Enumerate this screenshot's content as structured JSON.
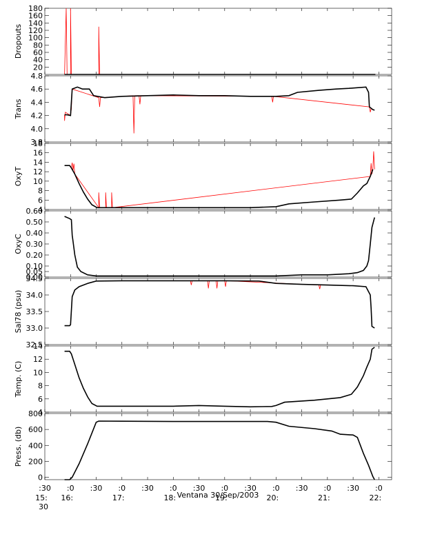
{
  "chart_data": {
    "type": "line",
    "time_axis": {
      "start": "15:30",
      "end": "22:15",
      "tick_labels": [
        {
          "t": "15:30",
          "top": ":30",
          "bottom": "15:"
        },
        {
          "t": "16:00",
          "top": ":0",
          "bottom": "16:"
        },
        {
          "t": "16:30",
          "top": ":30",
          "bottom": ""
        },
        {
          "t": "17:00",
          "top": ":0",
          "bottom": "17:"
        },
        {
          "t": "17:30",
          "top": ":30",
          "bottom": ""
        },
        {
          "t": "18:00",
          "top": ":0",
          "bottom": "18:"
        },
        {
          "t": "18:30",
          "top": ":30",
          "bottom": ""
        },
        {
          "t": "19:00",
          "top": ":0",
          "bottom": "19:"
        },
        {
          "t": "19:30",
          "top": ":30",
          "bottom": ""
        },
        {
          "t": "20:00",
          "top": ":0",
          "bottom": "20:"
        },
        {
          "t": "20:30",
          "top": ":30",
          "bottom": ""
        },
        {
          "t": "21:00",
          "top": ":0",
          "bottom": "21:"
        },
        {
          "t": "21:30",
          "top": ":30",
          "bottom": ""
        },
        {
          "t": "22:00",
          "top": ":0",
          "bottom": "22:"
        }
      ],
      "extra_label": "30",
      "caption": "Ventana 30/Sep/2003"
    },
    "colors": {
      "main": "#000000",
      "raw": "#ff0000"
    },
    "panels": [
      {
        "id": "dropouts",
        "ylabel": "Dropouts",
        "ylim": [
          0,
          180
        ],
        "yticks": [
          {
            "v": 20,
            "label": "20"
          },
          {
            "v": 40,
            "label": "40"
          },
          {
            "v": 60,
            "label": "60"
          },
          {
            "v": 80,
            "label": "80"
          },
          {
            "v": 100,
            "label": "100"
          },
          {
            "v": 120,
            "label": "120"
          },
          {
            "v": 140,
            "label": "140"
          },
          {
            "v": 160,
            "label": "160"
          },
          {
            "v": 180,
            "label": "180"
          }
        ],
        "line": [
          [
            "15:53",
            0
          ],
          [
            "21:56",
            0
          ]
        ],
        "red_line": [
          [
            "15:53",
            0
          ],
          [
            "15:55",
            180
          ],
          [
            "15:56",
            0
          ],
          [
            "16:00",
            0
          ],
          [
            "16:00",
            180
          ],
          [
            "16:01",
            0
          ],
          [
            "16:33",
            0
          ],
          [
            "16:33",
            130
          ],
          [
            "16:34",
            0
          ],
          [
            "21:56",
            0
          ]
        ]
      },
      {
        "id": "trans",
        "ylabel": "Trans",
        "ylim": [
          3.8,
          4.8
        ],
        "yticks": [
          {
            "v": 3.8,
            "label": "3.8"
          },
          {
            "v": 4.0,
            "label": "4.0"
          },
          {
            "v": 4.2,
            "label": "4.2"
          },
          {
            "v": 4.4,
            "label": "4.4"
          },
          {
            "v": 4.6,
            "label": "4.6"
          },
          {
            "v": 4.8,
            "label": "4.8"
          }
        ],
        "line": [
          [
            "15:53",
            4.21
          ],
          [
            "15:56",
            4.21
          ],
          [
            "16:00",
            4.2
          ],
          [
            "16:02",
            4.6
          ],
          [
            "16:08",
            4.63
          ],
          [
            "16:14",
            4.6
          ],
          [
            "16:22",
            4.6
          ],
          [
            "16:27",
            4.5
          ],
          [
            "16:40",
            4.47
          ],
          [
            "17:00",
            4.49
          ],
          [
            "17:30",
            4.5
          ],
          [
            "18:00",
            4.51
          ],
          [
            "18:30",
            4.5
          ],
          [
            "19:00",
            4.5
          ],
          [
            "19:30",
            4.49
          ],
          [
            "20:00",
            4.49
          ],
          [
            "20:15",
            4.5
          ],
          [
            "20:25",
            4.55
          ],
          [
            "20:50",
            4.58
          ],
          [
            "21:10",
            4.6
          ],
          [
            "21:25",
            4.61
          ],
          [
            "21:45",
            4.63
          ],
          [
            "21:48",
            4.55
          ],
          [
            "21:49",
            4.33
          ],
          [
            "21:53",
            4.29
          ],
          [
            "21:55",
            4.28
          ]
        ],
        "red_line": [
          [
            "15:53",
            4.21
          ],
          [
            "15:53",
            4.12
          ],
          [
            "15:54",
            4.25
          ],
          [
            "16:00",
            4.2
          ],
          [
            "16:01",
            4.3
          ],
          [
            "16:02",
            4.6
          ],
          [
            "16:33",
            4.47
          ],
          [
            "16:34",
            4.33
          ],
          [
            "16:35",
            4.47
          ],
          [
            "17:13",
            4.5
          ],
          [
            "17:14",
            3.93
          ],
          [
            "17:15",
            4.5
          ],
          [
            "17:20",
            4.5
          ],
          [
            "17:21",
            4.37
          ],
          [
            "17:22",
            4.5
          ],
          [
            "19:55",
            4.49
          ],
          [
            "19:56",
            4.4
          ],
          [
            "19:57",
            4.49
          ],
          [
            "21:49",
            4.33
          ],
          [
            "21:50",
            4.25
          ],
          [
            "21:51",
            4.3
          ]
        ]
      },
      {
        "id": "oxyt",
        "ylabel": "OxyT",
        "ylim": [
          4,
          18
        ],
        "yticks": [
          {
            "v": 4,
            "label": "4"
          },
          {
            "v": 6,
            "label": "6"
          },
          {
            "v": 8,
            "label": "8"
          },
          {
            "v": 10,
            "label": "10"
          },
          {
            "v": 12,
            "label": "12"
          },
          {
            "v": 14,
            "label": "14"
          },
          {
            "v": 16,
            "label": "16"
          },
          {
            "v": 18,
            "label": "18"
          }
        ],
        "line": [
          [
            "15:53",
            13.3
          ],
          [
            "15:59",
            13.3
          ],
          [
            "16:01",
            12.8
          ],
          [
            "16:05",
            11.5
          ],
          [
            "16:10",
            9.5
          ],
          [
            "16:15",
            7.7
          ],
          [
            "16:20",
            6.2
          ],
          [
            "16:25",
            5.0
          ],
          [
            "16:31",
            4.4
          ],
          [
            "17:00",
            4.4
          ],
          [
            "18:00",
            4.4
          ],
          [
            "19:00",
            4.4
          ],
          [
            "19:30",
            4.4
          ],
          [
            "20:00",
            4.6
          ],
          [
            "20:15",
            5.2
          ],
          [
            "20:45",
            5.6
          ],
          [
            "21:15",
            6.0
          ],
          [
            "21:28",
            6.2
          ],
          [
            "21:35",
            7.5
          ],
          [
            "21:42",
            9.0
          ],
          [
            "21:46",
            9.5
          ],
          [
            "21:50",
            11.0
          ],
          [
            "21:53",
            12.5
          ]
        ],
        "red_line": [
          [
            "16:01",
            12.8
          ],
          [
            "16:02",
            13.9
          ],
          [
            "16:03",
            12.4
          ],
          [
            "16:04",
            13.7
          ],
          [
            "16:05",
            11.5
          ],
          [
            "16:33",
            4.4
          ],
          [
            "16:33",
            7.6
          ],
          [
            "16:34",
            4.4
          ],
          [
            "16:41",
            4.4
          ],
          [
            "16:41",
            7.6
          ],
          [
            "16:42",
            4.4
          ],
          [
            "16:48",
            4.4
          ],
          [
            "16:48",
            7.6
          ],
          [
            "16:49",
            4.4
          ],
          [
            "21:50",
            11.0
          ],
          [
            "21:51",
            13.8
          ],
          [
            "21:52",
            11.5
          ],
          [
            "21:53",
            12.5
          ],
          [
            "21:54",
            16.3
          ],
          [
            "21:55",
            12.5
          ]
        ]
      },
      {
        "id": "oxyc",
        "ylabel": "OxyC",
        "ylim": [
          0.0,
          0.6
        ],
        "yticks": [
          {
            "v": 0.0,
            "label": "0.00"
          },
          {
            "v": 0.05,
            "label": "0.05"
          },
          {
            "v": 0.1,
            "label": "0.10"
          },
          {
            "v": 0.2,
            "label": "0.20"
          },
          {
            "v": 0.3,
            "label": "0.30"
          },
          {
            "v": 0.4,
            "label": "0.40"
          },
          {
            "v": 0.5,
            "label": "0.50"
          },
          {
            "v": 0.6,
            "label": "0.60"
          }
        ],
        "line": [
          [
            "15:53",
            0.55
          ],
          [
            "15:59",
            0.53
          ],
          [
            "16:01",
            0.52
          ],
          [
            "16:02",
            0.38
          ],
          [
            "16:03",
            0.32
          ],
          [
            "16:05",
            0.2
          ],
          [
            "16:08",
            0.09
          ],
          [
            "16:12",
            0.05
          ],
          [
            "16:20",
            0.02
          ],
          [
            "16:30",
            0.01
          ],
          [
            "17:00",
            0.01
          ],
          [
            "18:00",
            0.01
          ],
          [
            "19:00",
            0.01
          ],
          [
            "20:00",
            0.01
          ],
          [
            "20:30",
            0.02
          ],
          [
            "21:00",
            0.02
          ],
          [
            "21:25",
            0.03
          ],
          [
            "21:35",
            0.04
          ],
          [
            "21:42",
            0.06
          ],
          [
            "21:46",
            0.1
          ],
          [
            "21:48",
            0.15
          ],
          [
            "21:50",
            0.3
          ],
          [
            "21:52",
            0.45
          ],
          [
            "21:55",
            0.54
          ]
        ],
        "red_line": []
      },
      {
        "id": "sal",
        "ylabel": "Sal78 (psu)",
        "ylim": [
          32.5,
          34.5
        ],
        "yticks": [
          {
            "v": 32.5,
            "label": "32.5"
          },
          {
            "v": 33.0,
            "label": "33.0"
          },
          {
            "v": 33.5,
            "label": "33.5"
          },
          {
            "v": 34.0,
            "label": "34.0"
          },
          {
            "v": 34.5,
            "label": "34.5"
          }
        ],
        "line": [
          [
            "15:53",
            33.07
          ],
          [
            "15:59",
            33.07
          ],
          [
            "16:00",
            33.1
          ],
          [
            "16:02",
            33.95
          ],
          [
            "16:05",
            34.15
          ],
          [
            "16:10",
            34.25
          ],
          [
            "16:20",
            34.35
          ],
          [
            "16:30",
            34.42
          ],
          [
            "17:00",
            34.43
          ],
          [
            "18:00",
            34.43
          ],
          [
            "19:00",
            34.43
          ],
          [
            "19:40",
            34.42
          ],
          [
            "20:00",
            34.35
          ],
          [
            "20:30",
            34.32
          ],
          [
            "21:00",
            34.3
          ],
          [
            "21:30",
            34.28
          ],
          [
            "21:45",
            34.25
          ],
          [
            "21:50",
            34.0
          ],
          [
            "21:51",
            33.6
          ],
          [
            "21:52",
            33.05
          ],
          [
            "21:55",
            33.0
          ]
        ],
        "red_line": [
          [
            "18:20",
            34.43
          ],
          [
            "18:21",
            34.3
          ],
          [
            "18:22",
            34.43
          ],
          [
            "18:40",
            34.43
          ],
          [
            "18:41",
            34.2
          ],
          [
            "18:42",
            34.43
          ],
          [
            "18:50",
            34.43
          ],
          [
            "18:51",
            34.2
          ],
          [
            "18:52",
            34.43
          ],
          [
            "19:00",
            34.43
          ],
          [
            "19:01",
            34.25
          ],
          [
            "19:02",
            34.43
          ],
          [
            "20:50",
            34.3
          ],
          [
            "20:51",
            34.18
          ],
          [
            "20:52",
            34.3
          ]
        ]
      },
      {
        "id": "temp",
        "ylabel": "Temp. (C)",
        "ylim": [
          4,
          14
        ],
        "yticks": [
          {
            "v": 4,
            "label": "4"
          },
          {
            "v": 6,
            "label": "6"
          },
          {
            "v": 8,
            "label": "8"
          },
          {
            "v": 10,
            "label": "10"
          },
          {
            "v": 12,
            "label": "12"
          },
          {
            "v": 14,
            "label": "14"
          }
        ],
        "line": [
          [
            "15:53",
            13.2
          ],
          [
            "15:59",
            13.2
          ],
          [
            "16:01",
            12.8
          ],
          [
            "16:05",
            11.2
          ],
          [
            "16:10",
            9.2
          ],
          [
            "16:15",
            7.6
          ],
          [
            "16:20",
            6.3
          ],
          [
            "16:25",
            5.3
          ],
          [
            "16:31",
            4.9
          ],
          [
            "17:00",
            4.9
          ],
          [
            "18:00",
            4.9
          ],
          [
            "18:30",
            5.0
          ],
          [
            "19:00",
            4.9
          ],
          [
            "19:30",
            4.8
          ],
          [
            "19:55",
            4.85
          ],
          [
            "20:00",
            5.0
          ],
          [
            "20:10",
            5.5
          ],
          [
            "20:45",
            5.8
          ],
          [
            "21:15",
            6.2
          ],
          [
            "21:28",
            6.7
          ],
          [
            "21:35",
            7.8
          ],
          [
            "21:42",
            9.5
          ],
          [
            "21:46",
            10.8
          ],
          [
            "21:50",
            12.0
          ],
          [
            "21:52",
            13.5
          ],
          [
            "21:55",
            13.8
          ]
        ],
        "red_line": []
      },
      {
        "id": "press",
        "ylabel": "Press. (db)",
        "ylim": [
          -30,
          800
        ],
        "yticks": [
          {
            "v": 0,
            "label": "0"
          },
          {
            "v": 200,
            "label": "200"
          },
          {
            "v": 400,
            "label": "400"
          },
          {
            "v": 600,
            "label": "600"
          },
          {
            "v": 800,
            "label": "800"
          }
        ],
        "line": [
          [
            "15:53",
            -30
          ],
          [
            "15:59",
            -30
          ],
          [
            "16:02",
            0
          ],
          [
            "16:10",
            170
          ],
          [
            "16:20",
            420
          ],
          [
            "16:30",
            690
          ],
          [
            "16:33",
            705
          ],
          [
            "17:00",
            703
          ],
          [
            "18:00",
            700
          ],
          [
            "19:00",
            700
          ],
          [
            "19:50",
            700
          ],
          [
            "20:00",
            690
          ],
          [
            "20:15",
            640
          ],
          [
            "20:45",
            610
          ],
          [
            "21:05",
            580
          ],
          [
            "21:15",
            540
          ],
          [
            "21:30",
            530
          ],
          [
            "21:35",
            500
          ],
          [
            "21:42",
            300
          ],
          [
            "21:48",
            150
          ],
          [
            "21:53",
            10
          ],
          [
            "21:55",
            -30
          ]
        ],
        "red_line": []
      }
    ]
  }
}
